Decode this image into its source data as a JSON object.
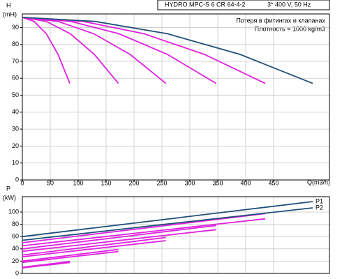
{
  "chart_data": [
    {
      "type": "line",
      "title": "HYDRO MPC-S 6 CR 64-4-2",
      "subtitle": "3* 400 V, 50 Hz",
      "annotations": [
        "Потеря в фитингах и клапанах",
        "Плотность = 1000 kg/m3"
      ],
      "ylabel": "H",
      "yunit": "(mH)",
      "xlabel": "Q(m3/h)",
      "xlim": [
        0,
        550
      ],
      "xticks": [
        0,
        50,
        100,
        150,
        200,
        250,
        300,
        350,
        400,
        450
      ],
      "ylim": [
        0,
        98
      ],
      "yticks": [
        0,
        10,
        20,
        30,
        40,
        50,
        60,
        70,
        80,
        90
      ],
      "grid": true,
      "series": [
        {
          "color": "#e020e0",
          "x": [
            0,
            21,
            43,
            64,
            85
          ],
          "values": [
            96,
            93.6,
            86.3,
            74.1,
            57
          ]
        },
        {
          "color": "#e020e0",
          "x": [
            0,
            43,
            86,
            129,
            172
          ],
          "values": [
            96,
            93.6,
            86.3,
            74.1,
            57
          ]
        },
        {
          "color": "#e020e0",
          "x": [
            0,
            64,
            128,
            193,
            257
          ],
          "values": [
            96,
            93.6,
            86.3,
            74.1,
            57
          ]
        },
        {
          "color": "#e020e0",
          "x": [
            0,
            87,
            173,
            260,
            347
          ],
          "values": [
            96,
            93.6,
            86.3,
            74.1,
            57
          ]
        },
        {
          "color": "#e020e0",
          "x": [
            0,
            109,
            218,
            326,
            435
          ],
          "values": [
            96,
            93.6,
            86.3,
            74.1,
            57
          ]
        },
        {
          "color": "#1f4f7a",
          "x": [
            0,
            130,
            260,
            390,
            520
          ],
          "values": [
            96,
            93.6,
            86.3,
            74.1,
            57
          ]
        }
      ]
    },
    {
      "type": "line",
      "ylabel": "P",
      "yunit": "(kW)",
      "xlim": [
        0,
        550
      ],
      "ylim": [
        0,
        125
      ],
      "yticks": [
        0,
        20,
        40,
        60,
        80,
        100
      ],
      "grid": true,
      "series": [
        {
          "color": "#e020e0",
          "x": [
            0,
            21,
            43,
            64,
            85
          ],
          "values": [
            10,
            12.4,
            14.8,
            17.1,
            19.5
          ]
        },
        {
          "color": "#e020e0",
          "x": [
            0,
            21,
            43,
            64,
            85
          ],
          "values": [
            9,
            11.2,
            13.4,
            15.6,
            17.8
          ]
        },
        {
          "color": "#e020e0",
          "x": [
            0,
            43,
            86,
            129,
            172
          ],
          "values": [
            20,
            24.8,
            29.5,
            34.3,
            39
          ]
        },
        {
          "color": "#e020e0",
          "x": [
            0,
            43,
            86,
            129,
            172
          ],
          "values": [
            18,
            22.4,
            26.8,
            31.2,
            35.6
          ]
        },
        {
          "color": "#e020e0",
          "x": [
            0,
            64,
            128,
            193,
            257
          ],
          "values": [
            30,
            37.1,
            44.3,
            51.4,
            58.5
          ]
        },
        {
          "color": "#e020e0",
          "x": [
            0,
            64,
            128,
            193,
            257
          ],
          "values": [
            27,
            33.6,
            40.2,
            46.8,
            53.4
          ]
        },
        {
          "color": "#e020e0",
          "x": [
            0,
            87,
            173,
            260,
            347
          ],
          "values": [
            40,
            49.5,
            59,
            68.5,
            78
          ]
        },
        {
          "color": "#e020e0",
          "x": [
            0,
            87,
            173,
            260,
            347
          ],
          "values": [
            36,
            44.8,
            53.6,
            62.4,
            71.2
          ]
        },
        {
          "color": "#e020e0",
          "x": [
            0,
            109,
            218,
            326,
            435
          ],
          "values": [
            50,
            61.9,
            73.8,
            85.6,
            97.5
          ]
        },
        {
          "color": "#e020e0",
          "x": [
            0,
            109,
            218,
            326,
            435
          ],
          "values": [
            45,
            56,
            67,
            78,
            89
          ]
        },
        {
          "name": "P1",
          "color": "#1f4f7a",
          "x": [
            0,
            130,
            260,
            390,
            520
          ],
          "values": [
            60,
            74.3,
            88.5,
            102.8,
            117
          ]
        },
        {
          "name": "P2",
          "color": "#1f4f7a",
          "x": [
            0,
            130,
            260,
            390,
            520
          ],
          "values": [
            54,
            67.2,
            80.4,
            93.6,
            106.8
          ]
        }
      ]
    }
  ]
}
